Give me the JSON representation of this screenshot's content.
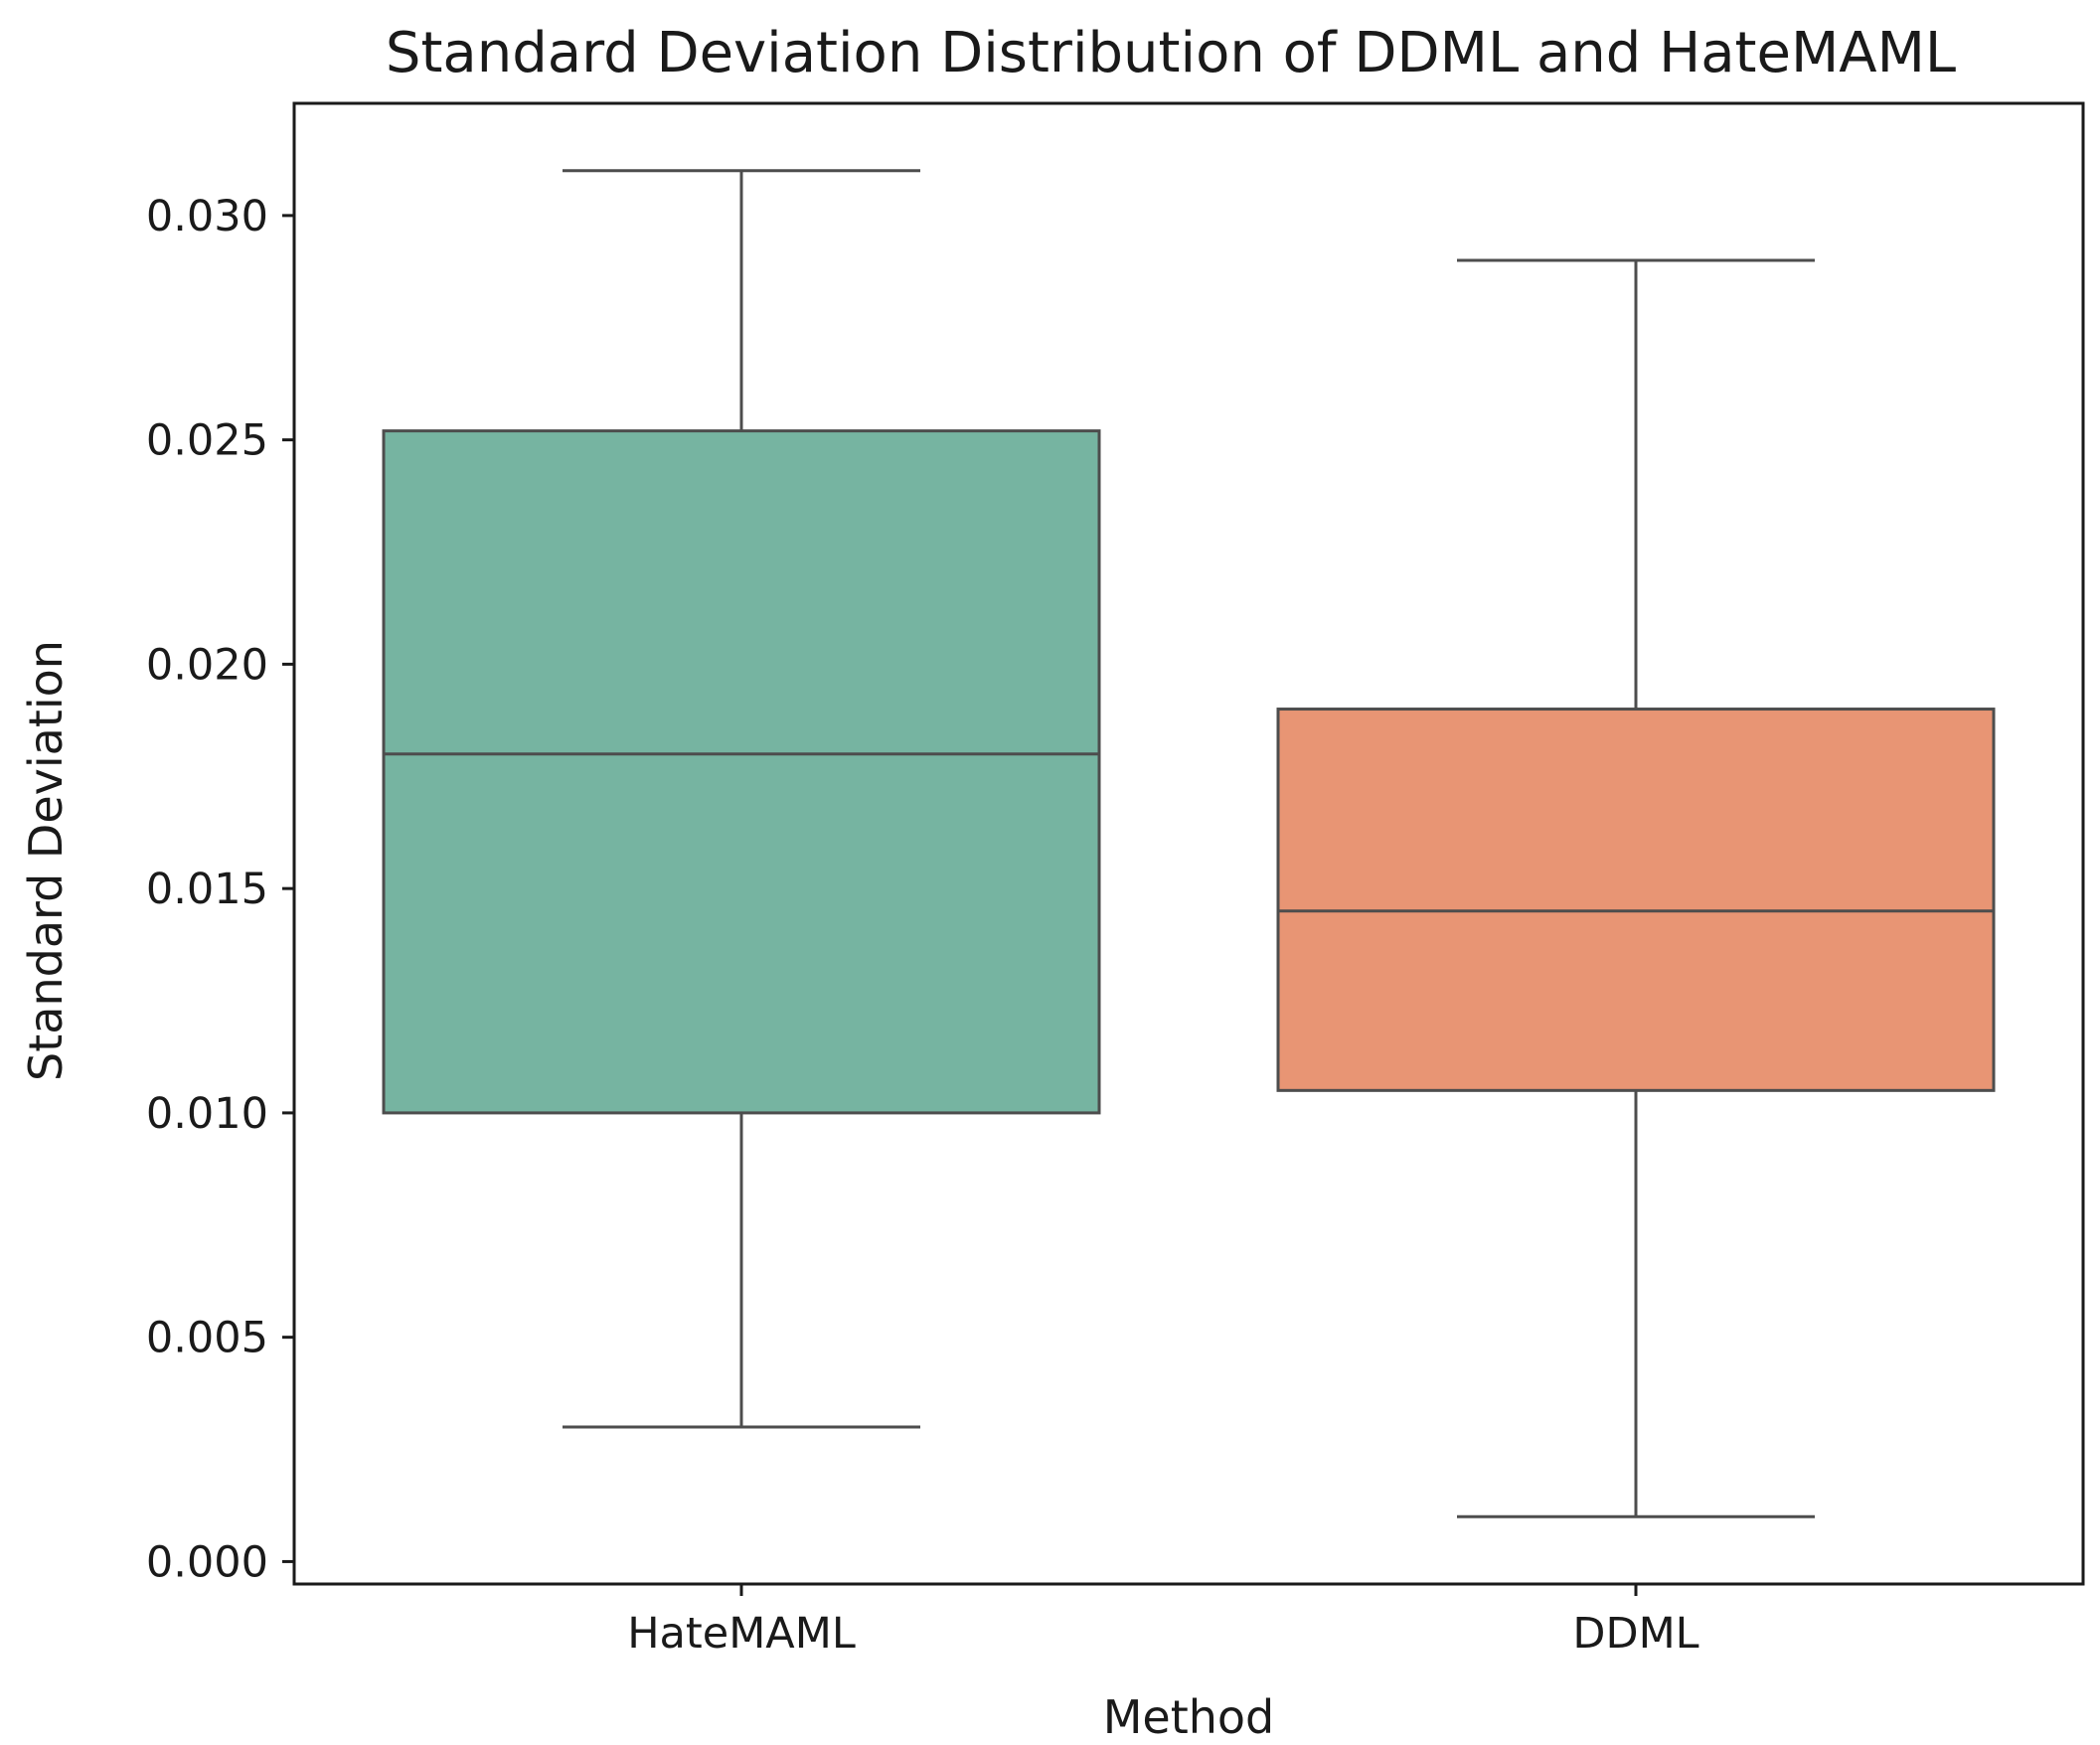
{
  "chart_data": {
    "type": "box",
    "title": "Standard Deviation Distribution of DDML and HateMAML",
    "xlabel": "Method",
    "ylabel": "Standard Deviation",
    "ylim": [
      -0.0005,
      0.0325
    ],
    "yticks": [
      0.0,
      0.005,
      0.01,
      0.015,
      0.02,
      0.025,
      0.03
    ],
    "ytick_labels": [
      "0.000",
      "0.005",
      "0.010",
      "0.015",
      "0.020",
      "0.025",
      "0.030"
    ],
    "categories": [
      "HateMAML",
      "DDML"
    ],
    "boxes": [
      {
        "name": "HateMAML",
        "whisker_low": 0.003,
        "q1": 0.01,
        "median": 0.018,
        "q3": 0.0252,
        "whisker_high": 0.031,
        "color": "#76b4a1"
      },
      {
        "name": "DDML",
        "whisker_low": 0.001,
        "q1": 0.0105,
        "median": 0.0145,
        "q3": 0.019,
        "whisker_high": 0.029,
        "color": "#e89574"
      }
    ],
    "line_color": "#4d4d4d",
    "grid": false,
    "legend": "none"
  }
}
